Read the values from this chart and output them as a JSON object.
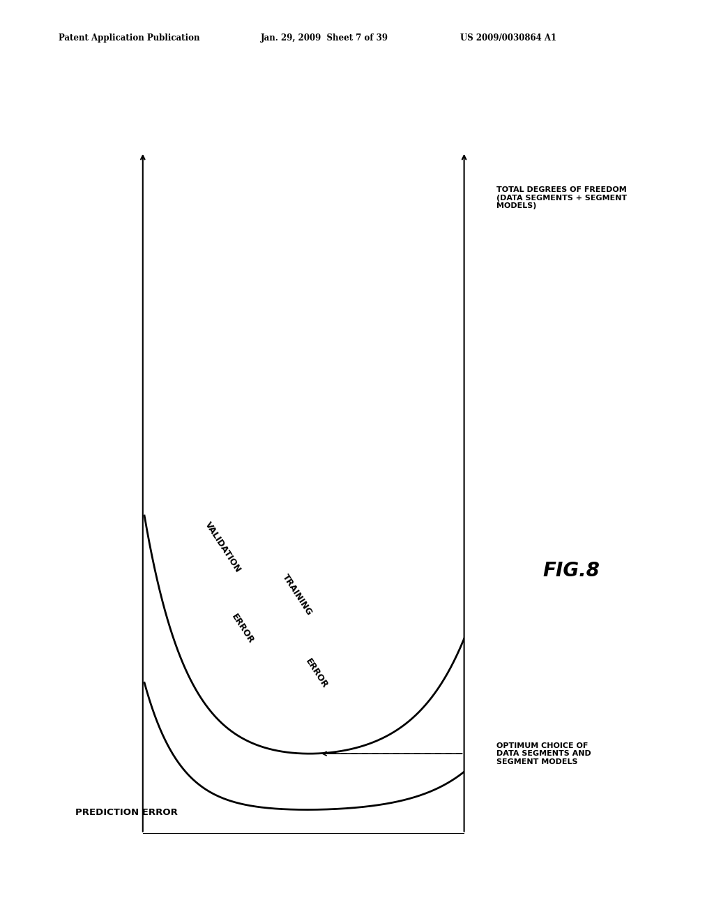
{
  "bg_color": "#ffffff",
  "header_left": "Patent Application Publication",
  "header_center": "Jan. 29, 2009  Sheet 7 of 39",
  "header_right": "US 2009/0030864 A1",
  "fig_label": "FIG.8",
  "y_axis_label": "PREDICTION ERROR",
  "curve1_label_top": "VALIDATION",
  "curve1_label_bot": "ERROR",
  "curve2_label_top": "TRAINING",
  "curve2_label_bot": "ERROR",
  "label_total_dof": "TOTAL DEGREES OF FREEDOM\n(DATA SEGMENTS + SEGMENT\nMODELS)",
  "label_optimum": "OPTIMUM CHOICE OF\nDATA SEGMENTS AND\nSEGMENT MODELS"
}
